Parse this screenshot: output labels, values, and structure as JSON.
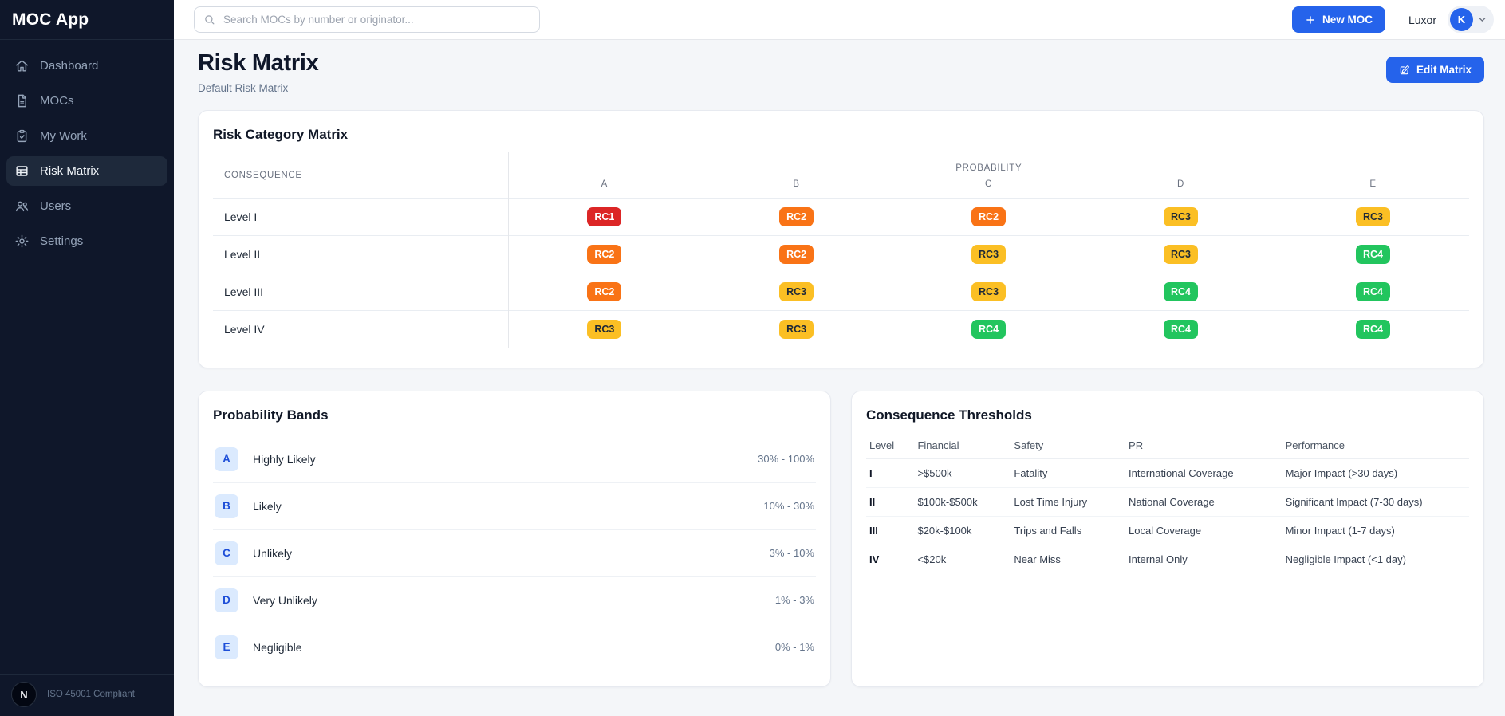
{
  "app": {
    "name": "MOC App",
    "org": "Luxor",
    "user_initial": "K",
    "footer_logo_initial": "N",
    "footer_text": "ISO 45001 Compliant"
  },
  "topbar": {
    "search_placeholder": "Search MOCs by number or originator...",
    "search_icon": "search-icon",
    "new_moc_label": "New MOC",
    "new_moc_icon": "plus-icon",
    "user_menu_icon": "chevron-down-icon"
  },
  "sidebar": {
    "items": [
      {
        "id": "dashboard",
        "label": "Dashboard",
        "icon": "home-icon",
        "active": false
      },
      {
        "id": "mocs",
        "label": "MOCs",
        "icon": "document-icon",
        "active": false
      },
      {
        "id": "my-work",
        "label": "My Work",
        "icon": "clipboard-icon",
        "active": false
      },
      {
        "id": "risk-matrix",
        "label": "Risk Matrix",
        "icon": "table-icon",
        "active": true
      },
      {
        "id": "users",
        "label": "Users",
        "icon": "users-icon",
        "active": false
      },
      {
        "id": "settings",
        "label": "Settings",
        "icon": "gear-icon",
        "active": false
      }
    ]
  },
  "page": {
    "title": "Risk Matrix",
    "subtitle": "Default Risk Matrix",
    "edit_button_label": "Edit Matrix",
    "edit_button_icon": "edit-icon"
  },
  "matrix": {
    "card_title": "Risk Category Matrix",
    "consequence_label": "CONSEQUENCE",
    "probability_label": "PROBABILITY",
    "columns": [
      "A",
      "B",
      "C",
      "D",
      "E"
    ],
    "rows": [
      {
        "label": "Level I",
        "cells": [
          "RC1",
          "RC2",
          "RC2",
          "RC3",
          "RC3"
        ]
      },
      {
        "label": "Level II",
        "cells": [
          "RC2",
          "RC2",
          "RC3",
          "RC3",
          "RC4"
        ]
      },
      {
        "label": "Level III",
        "cells": [
          "RC2",
          "RC3",
          "RC3",
          "RC4",
          "RC4"
        ]
      },
      {
        "label": "Level IV",
        "cells": [
          "RC3",
          "RC3",
          "RC4",
          "RC4",
          "RC4"
        ]
      }
    ],
    "badge_colors": {
      "RC1": {
        "bg": "#dc2626",
        "text": "#ffffff"
      },
      "RC2": {
        "bg": "#f97316",
        "text": "#ffffff"
      },
      "RC3": {
        "bg": "#fbbf24",
        "text": "#1f2937"
      },
      "RC4": {
        "bg": "#22c55e",
        "text": "#ffffff"
      }
    }
  },
  "probability_bands": {
    "card_title": "Probability Bands",
    "badge_bg": "#dbeafe",
    "badge_text": "#1d4ed8",
    "bands": [
      {
        "letter": "A",
        "label": "Highly Likely",
        "range": "30% - 100%"
      },
      {
        "letter": "B",
        "label": "Likely",
        "range": "10% - 30%"
      },
      {
        "letter": "C",
        "label": "Unlikely",
        "range": "3% - 10%"
      },
      {
        "letter": "D",
        "label": "Very Unlikely",
        "range": "1% - 3%"
      },
      {
        "letter": "E",
        "label": "Negligible",
        "range": "0% - 1%"
      }
    ]
  },
  "consequence_thresholds": {
    "card_title": "Consequence Thresholds",
    "headers": [
      "Level",
      "Financial",
      "Safety",
      "PR",
      "Performance"
    ],
    "rows": [
      [
        "I",
        ">$500k",
        "Fatality",
        "International Coverage",
        "Major Impact (>30 days)"
      ],
      [
        "II",
        "$100k-$500k",
        "Lost Time Injury",
        "National Coverage",
        "Significant Impact (7-30 days)"
      ],
      [
        "III",
        "$20k-$100k",
        "Trips and Falls",
        "Local Coverage",
        "Minor Impact (1-7 days)"
      ],
      [
        "IV",
        "<$20k",
        "Near Miss",
        "Internal Only",
        "Negligible Impact (<1 day)"
      ]
    ]
  },
  "colors": {
    "accent": "#2563eb",
    "sidebar_bg": "#0f172a",
    "sidebar_active_bg": "#1e293b"
  }
}
